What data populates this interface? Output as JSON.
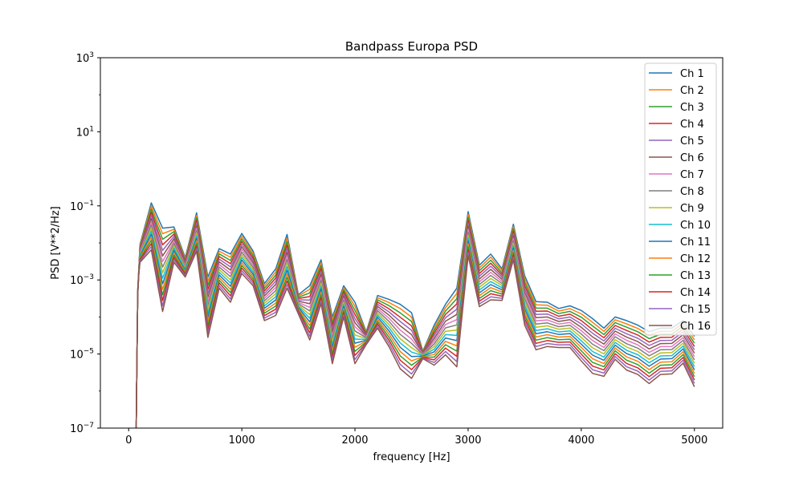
{
  "chart_data": {
    "type": "line",
    "title": "Bandpass Europa PSD",
    "xlabel": "frequency [Hz]",
    "ylabel": "PSD [V**2/Hz]",
    "xlim": [
      -250,
      5250
    ],
    "ylim": [
      1e-07,
      1000
    ],
    "yscale": "log",
    "xticks": [
      0,
      1000,
      2000,
      3000,
      4000,
      5000
    ],
    "xtick_labels": [
      "0",
      "1000",
      "2000",
      "3000",
      "4000",
      "5000"
    ],
    "yticks": [
      1e-07,
      1e-05,
      0.001,
      0.1,
      10,
      1000
    ],
    "ytick_labels": [
      "10",
      "10",
      "10",
      "10",
      "10",
      "10"
    ],
    "ytick_exponents": [
      "−7",
      "−5",
      "−3",
      "−1",
      "1",
      "3"
    ],
    "grid": false,
    "legend_position": "top-right",
    "x": [
      60,
      70,
      80,
      90,
      100,
      200,
      300,
      400,
      500,
      600,
      700,
      800,
      900,
      1000,
      1100,
      1200,
      1300,
      1400,
      1500,
      1600,
      1700,
      1800,
      1900,
      2000,
      2100,
      2200,
      2300,
      2400,
      2500,
      2600,
      2700,
      2800,
      2900,
      3000,
      3100,
      3200,
      3300,
      3400,
      3500,
      3600,
      3700,
      3800,
      3900,
      4000,
      4100,
      4200,
      4300,
      4400,
      4500,
      4600,
      4700,
      4800,
      4900,
      5000
    ],
    "top_series": [
      1e-09,
      1e-06,
      0.0005,
      0.002,
      0.009,
      0.12,
      0.025,
      0.027,
      0.004,
      0.065,
      0.0012,
      0.007,
      0.005,
      0.018,
      0.006,
      0.0008,
      0.002,
      0.017,
      0.0004,
      0.0007,
      0.0035,
      0.0001,
      0.0007,
      0.00025,
      4e-05,
      0.00038,
      0.0003,
      0.00022,
      0.00013,
      1.2e-05,
      6e-05,
      0.00022,
      0.0006,
      0.07,
      0.0025,
      0.005,
      0.002,
      0.032,
      0.0013,
      0.00026,
      0.00025,
      0.00017,
      0.0002,
      0.00015,
      9e-05,
      5e-05,
      0.0001,
      8e-05,
      6e-05,
      4e-05,
      5e-05,
      5e-05,
      8e-05,
      3e-05
    ],
    "bottom_series": [
      1e-09,
      1e-06,
      0.0004,
      0.0015,
      0.003,
      0.0065,
      0.00014,
      0.003,
      0.0012,
      0.006,
      2.8e-05,
      0.0006,
      0.00025,
      0.0015,
      0.0007,
      8e-05,
      0.00011,
      0.0006,
      0.00012,
      2.4e-05,
      0.00023,
      5.5e-06,
      0.0001,
      5.5e-06,
      1.8e-05,
      5e-05,
      1.6e-05,
      4e-06,
      2.2e-06,
      7.5e-06,
      5e-06,
      9.5e-06,
      4.5e-06,
      0.0045,
      0.00019,
      0.00029,
      0.00028,
      0.0035,
      6e-05,
      1.3e-05,
      1.6e-05,
      1.5e-05,
      1.5e-05,
      6.5e-06,
      3e-06,
      2.5e-06,
      7.2e-06,
      3.7e-06,
      2.8e-06,
      1.6e-06,
      2.8e-06,
      2.9e-06,
      5.7e-06,
      1.3e-06
    ],
    "series": [
      {
        "name": "Ch 1",
        "color": "#1f77b4"
      },
      {
        "name": "Ch 2",
        "color": "#ff7f0e"
      },
      {
        "name": "Ch 3",
        "color": "#2ca02c"
      },
      {
        "name": "Ch 4",
        "color": "#d62728"
      },
      {
        "name": "Ch 5",
        "color": "#9467bd"
      },
      {
        "name": "Ch 6",
        "color": "#8c564b"
      },
      {
        "name": "Ch 7",
        "color": "#e377c2"
      },
      {
        "name": "Ch 8",
        "color": "#7f7f7f"
      },
      {
        "name": "Ch 9",
        "color": "#bcbd22"
      },
      {
        "name": "Ch 10",
        "color": "#17becf"
      },
      {
        "name": "Ch 11",
        "color": "#1f77b4"
      },
      {
        "name": "Ch 12",
        "color": "#ff7f0e"
      },
      {
        "name": "Ch 13",
        "color": "#2ca02c"
      },
      {
        "name": "Ch 14",
        "color": "#d62728"
      },
      {
        "name": "Ch 15",
        "color": "#9467bd"
      },
      {
        "name": "Ch 16",
        "color": "#8c564b"
      }
    ]
  }
}
